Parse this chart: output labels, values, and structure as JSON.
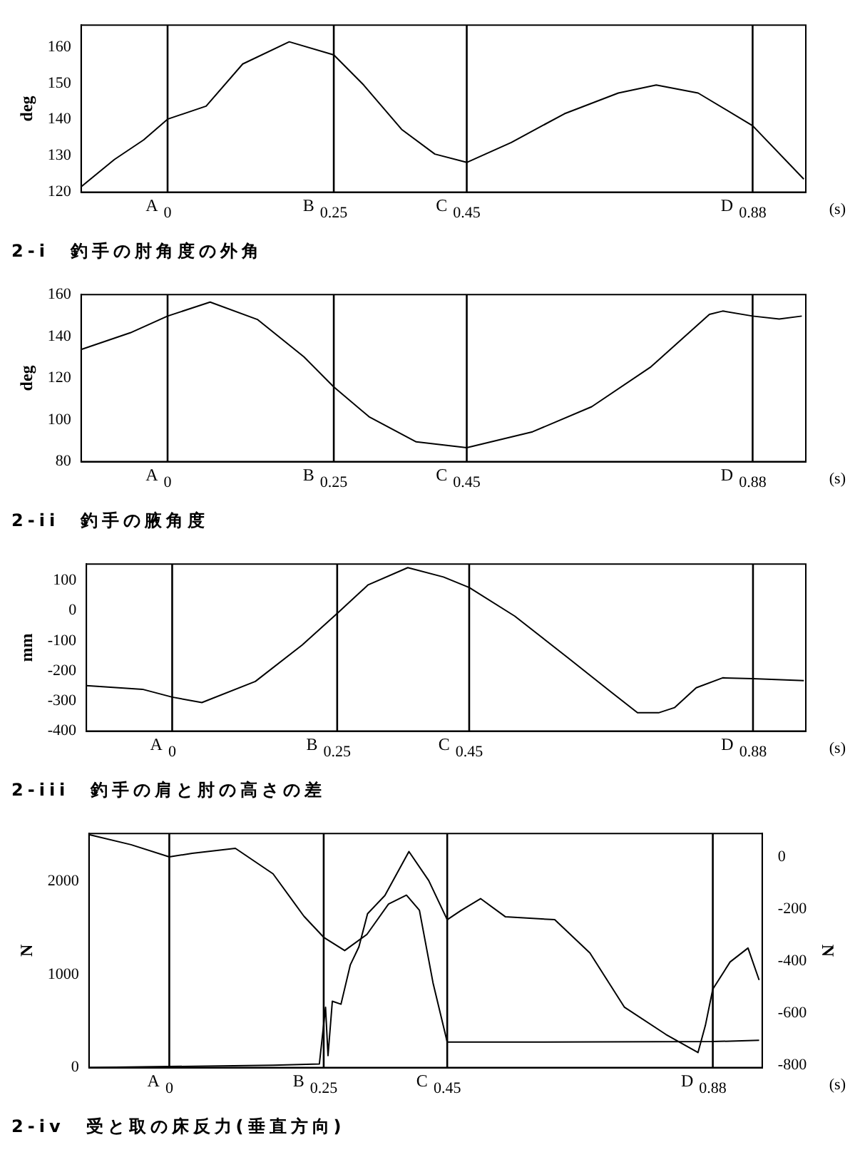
{
  "chart_data": [
    {
      "type": "line",
      "title": "2-i　釣手の肘角度の外角",
      "xlabel": "(s)",
      "ylabel": "deg",
      "xlim": [
        -0.13,
        0.96
      ],
      "xticks": [
        0,
        0.25,
        0.45,
        0.88
      ],
      "ylim": [
        120,
        166
      ],
      "yticks": [
        120,
        130,
        140,
        150,
        160
      ],
      "ref_lines": [
        {
          "axis": "x",
          "value": 0,
          "label": "A"
        },
        {
          "axis": "x",
          "value": 0.25,
          "label": "B"
        },
        {
          "axis": "x",
          "value": 0.45,
          "label": "C"
        },
        {
          "axis": "x",
          "value": 0.88,
          "label": "D"
        }
      ],
      "series": [
        {
          "color": "#000000",
          "x": [
            -0.13,
            -0.08,
            -0.036,
            0,
            0.058,
            0.113,
            0.183,
            0.25,
            0.295,
            0.352,
            0.402,
            0.45,
            0.517,
            0.597,
            0.678,
            0.735,
            0.798,
            0.88,
            0.957
          ],
          "values": [
            121.5,
            129,
            134.4,
            140.1,
            143.7,
            155.3,
            161.4,
            157.8,
            149.5,
            137.3,
            130.5,
            128.2,
            133.7,
            141.6,
            147.3,
            149.5,
            147.3,
            138.3,
            123.6
          ]
        }
      ]
    },
    {
      "type": "line",
      "title": "2-ii　釣手の腋角度",
      "xlabel": "(s)",
      "ylabel": "deg",
      "xlim": [
        -0.13,
        0.96
      ],
      "xticks": [
        0,
        0.25,
        0.45,
        0.88
      ],
      "ylim": [
        80,
        160
      ],
      "yticks": [
        80,
        100,
        120,
        140,
        160
      ],
      "ref_lines": [
        {
          "axis": "x",
          "value": 0,
          "label": "A"
        },
        {
          "axis": "x",
          "value": 0.25,
          "label": "B"
        },
        {
          "axis": "x",
          "value": 0.45,
          "label": "C"
        },
        {
          "axis": "x",
          "value": 0.88,
          "label": "D"
        }
      ],
      "series": [
        {
          "color": "#000000",
          "x": [
            -0.13,
            -0.056,
            0,
            0.064,
            0.135,
            0.205,
            0.25,
            0.303,
            0.374,
            0.45,
            0.549,
            0.638,
            0.727,
            0.815,
            0.835,
            0.88,
            0.92,
            0.954
          ],
          "values": [
            133.7,
            141.7,
            149.7,
            156.4,
            148.1,
            130.2,
            115.8,
            101.5,
            89.5,
            86.7,
            94.3,
            106.3,
            125.4,
            150.5,
            152.1,
            149.7,
            148.3,
            149.7
          ]
        }
      ]
    },
    {
      "type": "line",
      "title": "2-iii　釣手の肩と肘の高さの差",
      "xlabel": "(s)",
      "ylabel": "mm",
      "xlim": [
        -0.13,
        0.96
      ],
      "xticks": [
        0,
        0.25,
        0.45,
        0.88
      ],
      "ylim": [
        -400,
        155
      ],
      "yticks": [
        -400,
        -300,
        -200,
        -100,
        0,
        100
      ],
      "ref_lines": [
        {
          "axis": "x",
          "value": 0,
          "label": "A"
        },
        {
          "axis": "x",
          "value": 0.25,
          "label": "B"
        },
        {
          "axis": "x",
          "value": 0.45,
          "label": "C"
        },
        {
          "axis": "x",
          "value": 0.88,
          "label": "D"
        }
      ],
      "series": [
        {
          "color": "#000000",
          "x": [
            -0.13,
            -0.045,
            0,
            0.045,
            0.126,
            0.197,
            0.25,
            0.297,
            0.357,
            0.411,
            0.45,
            0.519,
            0.6,
            0.665,
            0.705,
            0.737,
            0.761,
            0.794,
            0.834,
            0.88,
            0.957
          ],
          "values": [
            -249,
            -261,
            -287,
            -305,
            -235,
            -114,
            -9,
            86,
            143,
            112,
            77,
            -18,
            -157,
            -270,
            -339,
            -339,
            -322,
            -256,
            -223,
            -226,
            -232
          ]
        }
      ]
    },
    {
      "type": "line",
      "title": "2-iv　受と取の床反力(垂直方向)",
      "xlabel": "(s)",
      "ylabel": "N",
      "y2label": "N",
      "xlim": [
        -0.13,
        0.96
      ],
      "xticks": [
        0,
        0.25,
        0.45,
        0.88
      ],
      "ylim": [
        0,
        2510
      ],
      "yticks": [
        0,
        1000,
        2000
      ],
      "y2lim": [
        -810,
        90
      ],
      "y2ticks": [
        -800,
        -600,
        -400,
        -200,
        0
      ],
      "ref_lines": [
        {
          "axis": "x",
          "value": 0,
          "label": "A"
        },
        {
          "axis": "x",
          "value": 0.25,
          "label": "B"
        },
        {
          "axis": "x",
          "value": 0.45,
          "label": "C"
        },
        {
          "axis": "x",
          "value": 0.88,
          "label": "D"
        }
      ],
      "series": [
        {
          "color": "#000000",
          "axis": "y2",
          "x": [
            -0.13,
            -0.062,
            0,
            0.037,
            0.107,
            0.168,
            0.218,
            0.25,
            0.284,
            0.32,
            0.355,
            0.384,
            0.405,
            0.427,
            0.45,
            0.577,
            0.88,
            0.955
          ],
          "values": [
            86,
            47,
            0,
            14,
            33,
            -65,
            -228,
            -309,
            -360,
            -298,
            -181,
            -147,
            -205,
            -484,
            -712,
            -712,
            -710,
            -705
          ]
        },
        {
          "color": "#000000",
          "x": [
            -0.13,
            0.168,
            0.243,
            0.253,
            0.257,
            0.264,
            0.278,
            0.293,
            0.307,
            0.321,
            0.349,
            0.388,
            0.42,
            0.45,
            0.472,
            0.504,
            0.544,
            0.624,
            0.681,
            0.737,
            0.804,
            0.856,
            0.868,
            0.88,
            0.908,
            0.937,
            0.955
          ],
          "values": [
            0,
            26,
            39,
            647,
            129,
            712,
            680,
            1100,
            1294,
            1650,
            1845,
            2317,
            2006,
            1586,
            1683,
            1812,
            1618,
            1586,
            1230,
            647,
            356,
            162,
            453,
            841,
            1133,
            1282,
            939
          ]
        }
      ]
    }
  ]
}
